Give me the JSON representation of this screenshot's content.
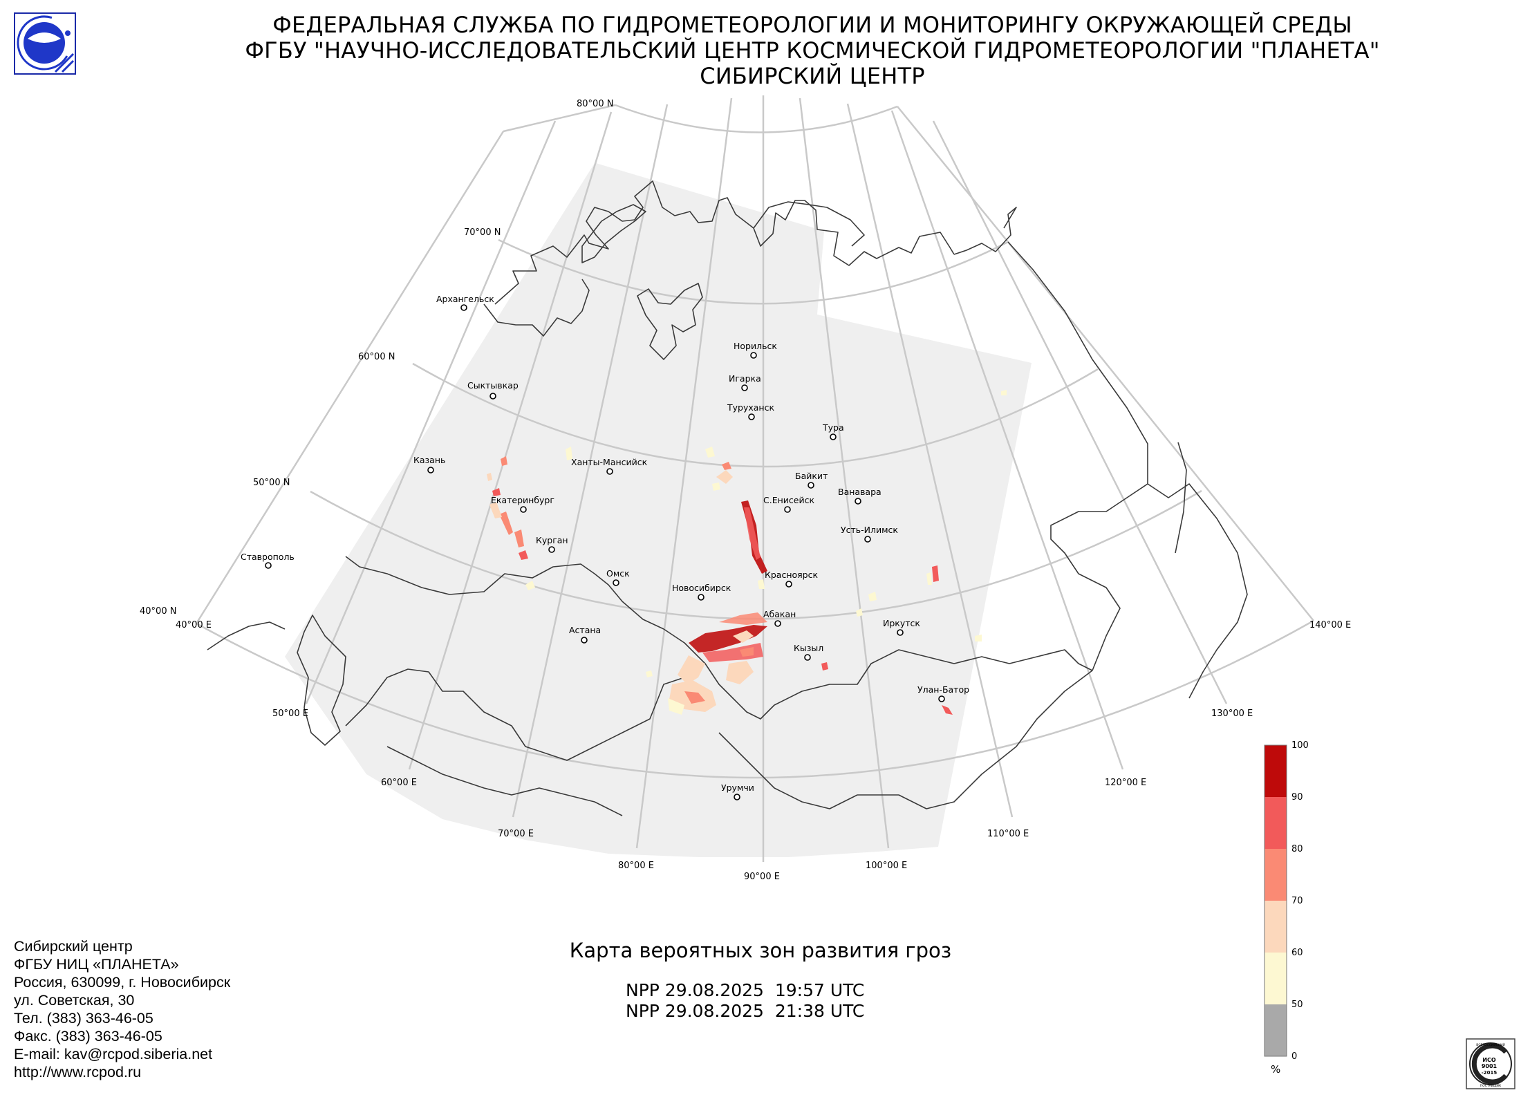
{
  "header": {
    "line1": "ФЕДЕРАЛЬНАЯ СЛУЖБА ПО ГИДРОМЕТЕОРОЛОГИИ И МОНИТОРИНГУ ОКРУЖАЮЩЕЙ СРЕДЫ",
    "line2": "ФГБУ \"НАУЧНО-ИССЛЕДОВАТЕЛЬСКИЙ ЦЕНТР КОСМИЧЕСКОЙ ГИДРОМЕТЕОРОЛОГИИ \"ПЛАНЕТА\"",
    "line3": "СИБИРСКИЙ ЦЕНТР"
  },
  "map": {
    "latitude_labels": [
      "80°00 N",
      "70°00 N",
      "60°00 N",
      "50°00 N",
      "40°00 N"
    ],
    "longitude_labels": [
      "40°00 E",
      "50°00 E",
      "60°00 E",
      "70°00 E",
      "80°00 E",
      "90°00 E",
      "100°00 E",
      "110°00 E",
      "120°00 E",
      "130°00 E",
      "140°00 E"
    ],
    "cities": [
      "Архангельск",
      "Сыктывкар",
      "Казань",
      "Екатеринбург",
      "Курган",
      "Ставрополь",
      "Ханты-Мансийск",
      "Омск",
      "Астана",
      "Новосибирск",
      "Норильск",
      "Игарка",
      "Туруханск",
      "Тура",
      "Байкит",
      "Ванавара",
      "С.Енисейск",
      "Усть-Илимск",
      "Красноярск",
      "Абакан",
      "Кызыл",
      "Иркутск",
      "Улан-Батор",
      "Урумчи"
    ],
    "colors": {
      "coverage": "#efefef",
      "grid": "#c8c8c8",
      "coast": "#3a3a3a"
    }
  },
  "legend": {
    "ticks": [
      "100",
      "90",
      "80",
      "70",
      "60",
      "50",
      "0"
    ],
    "unit": "%",
    "bins": [
      {
        "range": "90–100",
        "color": "#be0a0a"
      },
      {
        "range": "80–90",
        "color": "#f25a5a"
      },
      {
        "range": "70–80",
        "color": "#fa8a74"
      },
      {
        "range": "60–70",
        "color": "#fcd8bc"
      },
      {
        "range": "50–60",
        "color": "#fdf8d2"
      },
      {
        "range": "0–50",
        "color": "#a9a9a9"
      }
    ]
  },
  "footer": {
    "contact": [
      "Сибирский центр",
      "ФГБУ НИЦ «ПЛАНЕТА»",
      "Россия, 630099, г. Новосибирск",
      "ул. Советская, 30",
      "Тел. (383) 363-46-05",
      "Факс. (383) 363-46-05",
      "E-mail: kav@rcpod.siberia.net",
      "http://www.rcpod.ru"
    ],
    "map_title": "Карта вероятных зон развития гроз",
    "passes": [
      "NPP 29.08.2025  19:57 UTC",
      "NPP 29.08.2025  21:38 UTC"
    ]
  },
  "iso_badge": {
    "text_top": "ВСЕРОССИЙСКИЙ",
    "text_bottom": "ПОСТАВЩИК",
    "standard": "ИСО",
    "number": "9001",
    "year": "-2015"
  }
}
